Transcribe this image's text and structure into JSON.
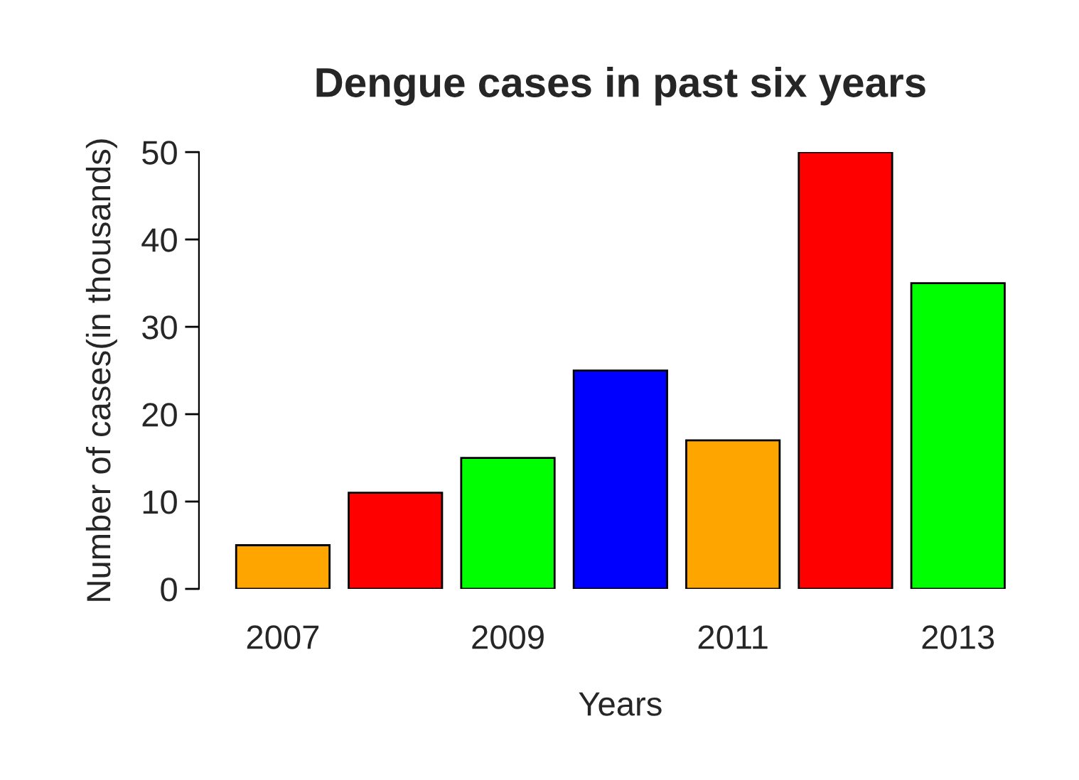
{
  "chart_data": {
    "type": "bar",
    "title": "Dengue cases in past six years",
    "xlabel": "Years",
    "ylabel": "Number of cases(in thousands)",
    "categories": [
      "2007",
      null,
      "2009",
      null,
      "2011",
      null,
      "2013"
    ],
    "values": [
      5,
      11,
      15,
      25,
      17,
      50,
      35
    ],
    "colors": [
      "#ffa500",
      "#ff0000",
      "#00ff00",
      "#0000ff",
      "#ffa500",
      "#ff0000",
      "#00ff00"
    ],
    "ylim": [
      0,
      50
    ],
    "yticks": [
      0,
      10,
      20,
      30,
      40,
      50
    ],
    "grid": false,
    "legend": false
  }
}
